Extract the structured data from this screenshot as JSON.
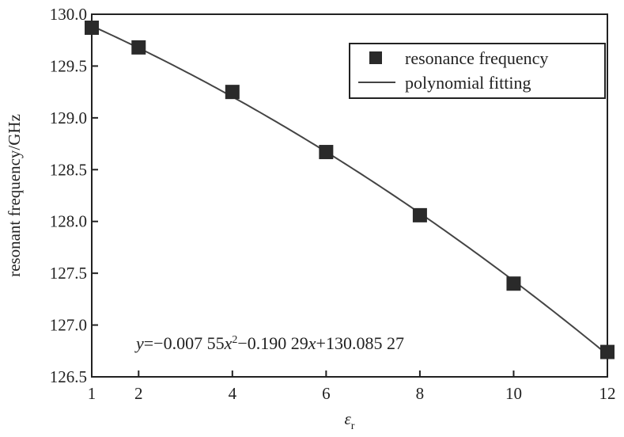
{
  "chart_data": {
    "type": "line",
    "ylabel": "resonant frequency/GHz",
    "xlabel_symbol": "ε",
    "xlabel_subscript": "r",
    "xlim": [
      1,
      12
    ],
    "ylim": [
      126.5,
      130.0
    ],
    "x_ticks": [
      1,
      2,
      4,
      6,
      8,
      10,
      12
    ],
    "y_ticks": [
      126.5,
      127.0,
      127.5,
      128.0,
      128.5,
      129.0,
      129.5,
      130.0
    ],
    "y_tick_labels": [
      "126.5",
      "127.0",
      "127.5",
      "128.0",
      "128.5",
      "129.0",
      "129.5",
      "130.0"
    ],
    "series": [
      {
        "name": "resonance frequency",
        "kind": "scatter",
        "marker": "square",
        "x": [
          1,
          2,
          4,
          6,
          8,
          10,
          12
        ],
        "y": [
          129.87,
          129.68,
          129.25,
          128.67,
          128.06,
          127.4,
          126.74
        ]
      },
      {
        "name": "polynomial fitting",
        "kind": "line",
        "coefficients": {
          "a": -0.00755,
          "b": -0.19029,
          "c": 130.08527
        }
      }
    ],
    "legend": {
      "position": "top-right",
      "entries": [
        "resonance frequency",
        "polynomial fitting"
      ]
    },
    "equation": {
      "y": "y",
      "part1": "=−0.007 55",
      "x1": "x",
      "sup": "2",
      "part2": "−0.190 29",
      "x2": "x",
      "part3": "+130.085 27"
    },
    "grid": false,
    "colors": {
      "axis": "#222222",
      "marker": "#2a2a2a",
      "line": "#444444"
    }
  }
}
